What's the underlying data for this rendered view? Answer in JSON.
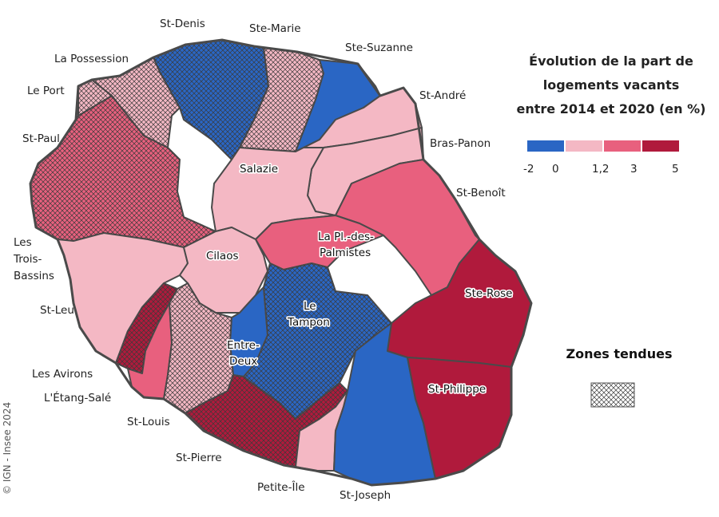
{
  "legend": {
    "title_line1": "Évolution de la part de",
    "title_line2": "logements vacants",
    "title_line3": "entre 2014 et 2020 (en %)",
    "class_colors": [
      "#2a66c4",
      "#f4b8c4",
      "#e8607e",
      "#b01a3c"
    ],
    "break_labels": [
      "-2",
      "0",
      "1,2",
      "3",
      "5"
    ]
  },
  "zones_tendues": {
    "title": "Zones tendues",
    "pattern": "crosshatch"
  },
  "source": "© IGN - Insee 2024",
  "communes": {
    "st_denis": "St-Denis",
    "ste_marie": "Ste-Marie",
    "ste_suzanne": "Ste-Suzanne",
    "la_possession": "La Possession",
    "le_port": "Le Port",
    "st_andre": "St-André",
    "st_paul": "St-Paul",
    "bras_panon": "Bras-Panon",
    "salazie": "Salazie",
    "st_benoit": "St-Benoît",
    "les_trois_bassins_1": "Les",
    "les_trois_bassins_2": "Trois-",
    "les_trois_bassins_3": "Bassins",
    "la_plaine_1": "La Pl.-des-",
    "la_plaine_2": "Palmistes",
    "cilaos": "Cilaos",
    "ste_rose": "Ste-Rose",
    "st_leu": "St-Leu",
    "le_tampon_1": "Le",
    "le_tampon_2": "Tampon",
    "entre_deux_1": "Entre-",
    "entre_deux_2": "Deux",
    "les_avirons": "Les Avirons",
    "st_philippe": "St-Philippe",
    "etang_sale": "L'Étang-Salé",
    "st_louis": "St-Louis",
    "st_pierre": "St-Pierre",
    "petite_ile": "Petite-Île",
    "st_joseph": "St-Joseph"
  }
}
